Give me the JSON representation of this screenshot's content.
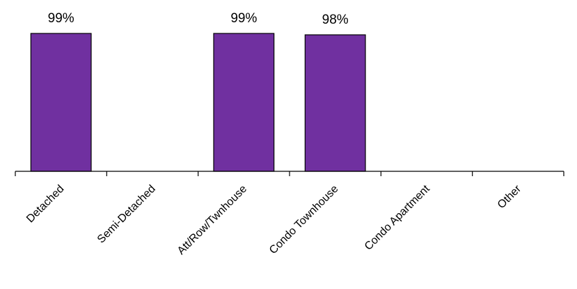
{
  "chart_data": {
    "type": "bar",
    "categories": [
      "Detached",
      "Semi-Detached",
      "Att/Row/Twnhouse",
      "Condo Townhouse",
      "Condo Apartment",
      "Other"
    ],
    "values": [
      99,
      null,
      99,
      98,
      null,
      null
    ],
    "data_labels": [
      "99%",
      "",
      "99%",
      "98%",
      "",
      ""
    ],
    "title": "",
    "xlabel": "",
    "ylabel": "",
    "ylim": [
      0,
      100
    ],
    "bar_color": "#7030a0",
    "grid": false,
    "legend": "none",
    "y_axis_visible": false
  }
}
